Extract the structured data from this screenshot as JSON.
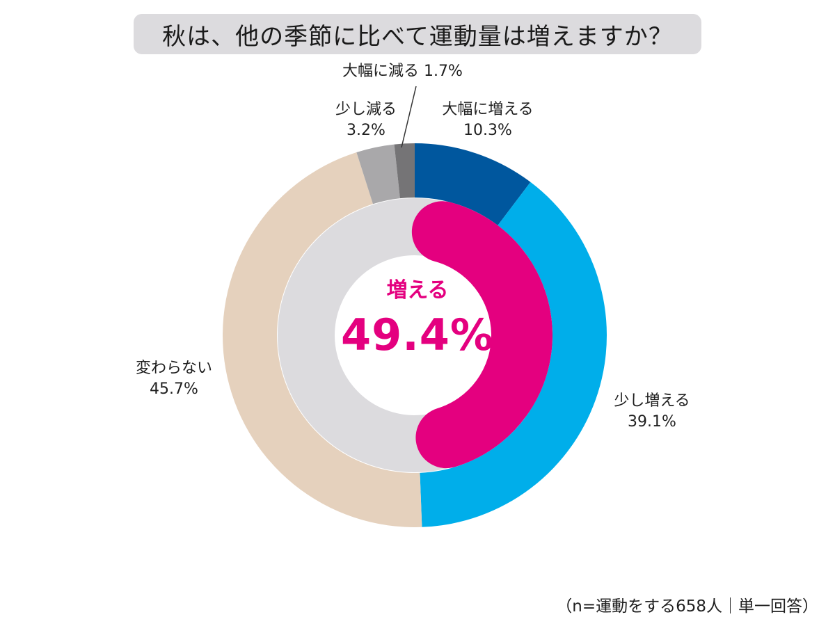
{
  "title": "秋は、他の季節に比べて運動量は増えますか？",
  "chart_data": {
    "type": "pie",
    "outer_ring": [
      {
        "name": "大幅に増える",
        "value": 10.3,
        "label": "10.3%",
        "color": "#00579e"
      },
      {
        "name": "少し増える",
        "value": 39.1,
        "label": "39.1%",
        "color": "#00aeea"
      },
      {
        "name": "変わらない",
        "value": 45.7,
        "label": "45.7%",
        "color": "#e5d1bd"
      },
      {
        "name": "少し減る",
        "value": 3.2,
        "label": "3.2%",
        "color": "#a9a8aa"
      },
      {
        "name": "大幅に減る",
        "value": 1.7,
        "label": "1.7%",
        "color": "#757476"
      }
    ],
    "inner_ring": {
      "name": "増える",
      "value": 49.4,
      "label": "49.4%",
      "color": "#e4007f",
      "track_color": "#dcdbde"
    }
  },
  "labels": {
    "increase_much_name": "大幅に増える",
    "increase_much_value": "10.3%",
    "increase_little_name": "少し増える",
    "increase_little_value": "39.1%",
    "no_change_name": "変わらない",
    "no_change_value": "45.7%",
    "decrease_little_name": "少し減る",
    "decrease_little_value": "3.2%",
    "decrease_much_text": "大幅に減る 1.7%"
  },
  "center": {
    "label": "増える",
    "value": "49.4%"
  },
  "note": "（n=運動をする658人｜単一回答）"
}
